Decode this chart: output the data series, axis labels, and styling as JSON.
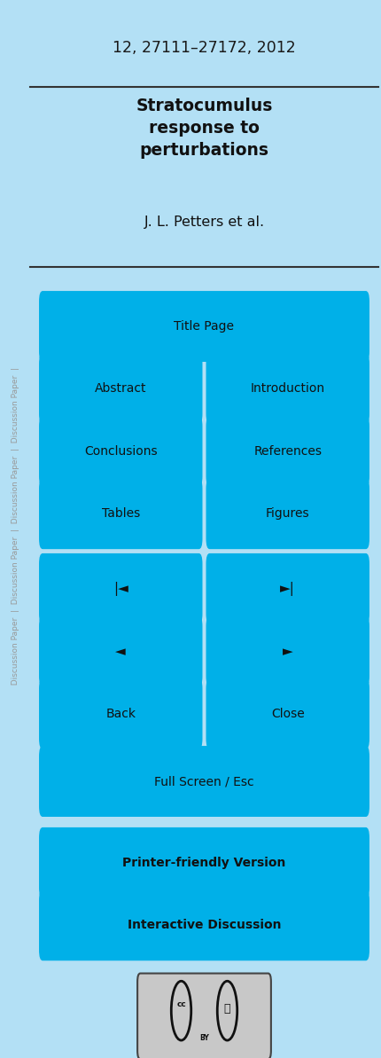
{
  "bg_color": "#b3e0f5",
  "btn_color": "#00b0e8",
  "btn_text_color": "#111111",
  "title_line": "12, 27111–27172, 2012",
  "paper_title": "Stratocumulus\nresponse to\nperturbations",
  "authors": "J. L. Petters et al.",
  "buttons_pair": [
    [
      "Abstract",
      "Introduction"
    ],
    [
      "Conclusions",
      "References"
    ],
    [
      "Tables",
      "Figures"
    ],
    [
      "|◄",
      "►|"
    ],
    [
      "◄",
      "►"
    ],
    [
      "Back",
      "Close"
    ]
  ],
  "sidebar_full_text": "  Discussion Paper  |  Discussion Paper  |  Discussion Paper  |  Discussion Paper  |"
}
